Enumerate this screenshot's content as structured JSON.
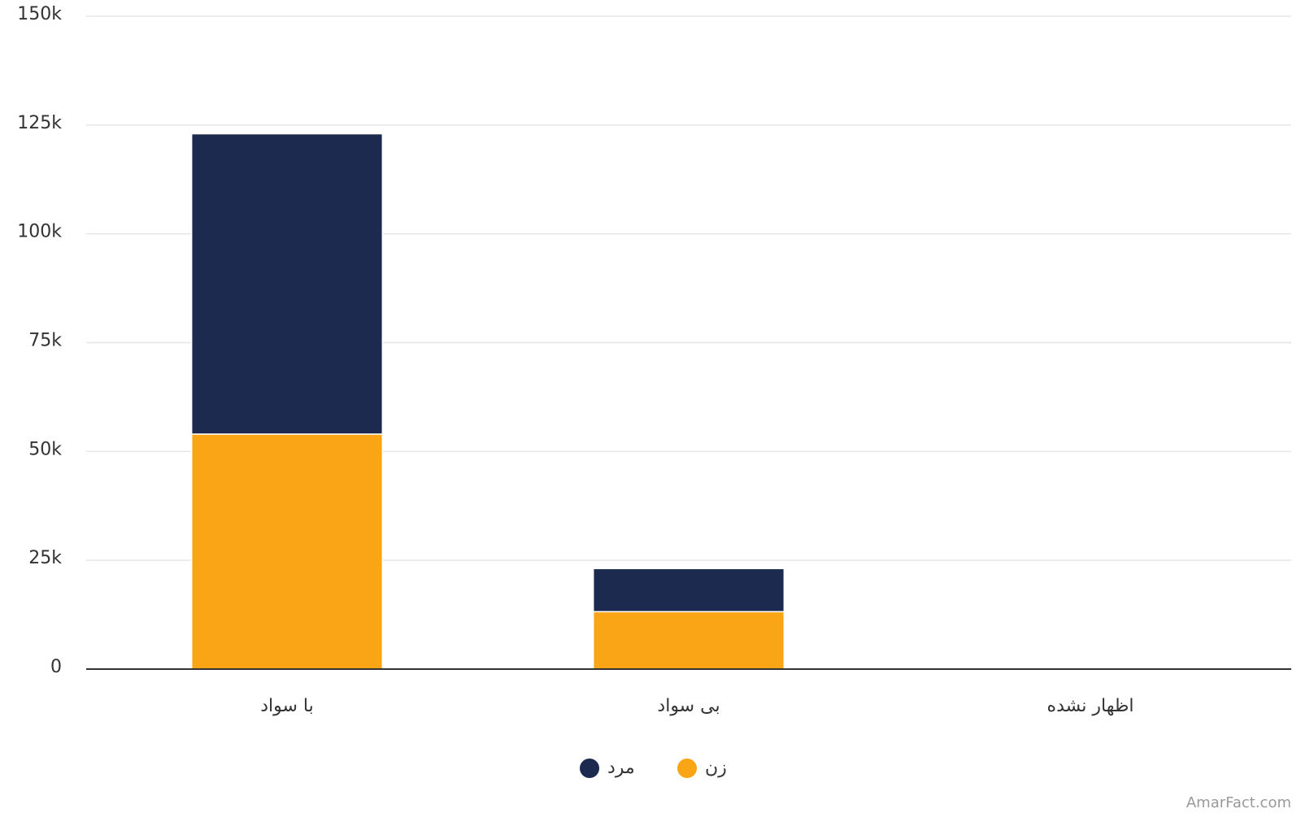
{
  "chart_data": {
    "type": "stacked_bar",
    "categories": [
      "با سواد",
      "بی سواد",
      "اظهار نشده"
    ],
    "series": [
      {
        "name": "زن",
        "color": "#f9a515",
        "values": [
          54000,
          13200,
          0
        ]
      },
      {
        "name": "مرد",
        "color": "#1b2a4e",
        "values": [
          69000,
          9900,
          0
        ]
      }
    ],
    "ylim": [
      0,
      150000
    ],
    "yticks": [
      0,
      {
        "value": 25000,
        "label": "25k"
      },
      {
        "value": 50000,
        "label": "50k"
      },
      {
        "value": 75000,
        "label": "75k"
      },
      {
        "value": 100000,
        "label": "100k"
      },
      {
        "value": 125000,
        "label": "125k"
      },
      {
        "value": 150000,
        "label": "150k"
      }
    ],
    "grid": true,
    "source": "AmarFact.com"
  }
}
